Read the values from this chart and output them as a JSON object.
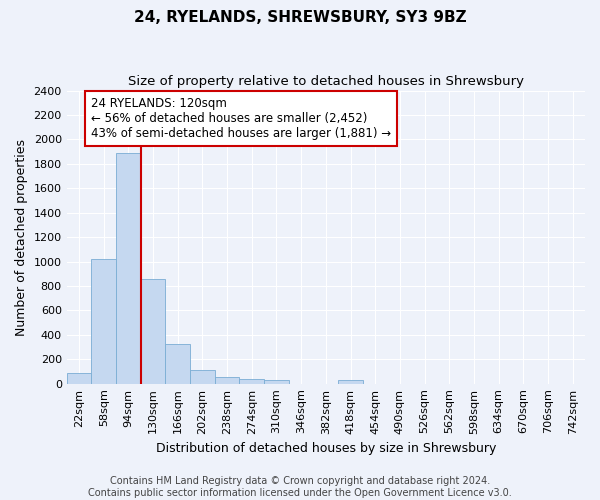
{
  "title": "24, RYELANDS, SHREWSBURY, SY3 9BZ",
  "subtitle": "Size of property relative to detached houses in Shrewsbury",
  "xlabel": "Distribution of detached houses by size in Shrewsbury",
  "ylabel": "Number of detached properties",
  "bar_labels": [
    "22sqm",
    "58sqm",
    "94sqm",
    "130sqm",
    "166sqm",
    "202sqm",
    "238sqm",
    "274sqm",
    "310sqm",
    "346sqm",
    "382sqm",
    "418sqm",
    "454sqm",
    "490sqm",
    "526sqm",
    "562sqm",
    "598sqm",
    "634sqm",
    "670sqm",
    "706sqm",
    "742sqm"
  ],
  "bar_values": [
    85,
    1020,
    1890,
    860,
    325,
    115,
    55,
    40,
    30,
    0,
    0,
    30,
    0,
    0,
    0,
    0,
    0,
    0,
    0,
    0,
    0
  ],
  "bar_color": "#c5d8f0",
  "bar_edge_color": "#7aadd4",
  "ylim": [
    0,
    2400
  ],
  "yticks": [
    0,
    200,
    400,
    600,
    800,
    1000,
    1200,
    1400,
    1600,
    1800,
    2000,
    2200,
    2400
  ],
  "vline_color": "#cc0000",
  "annotation_text": "24 RYELANDS: 120sqm\n← 56% of detached houses are smaller (2,452)\n43% of semi-detached houses are larger (1,881) →",
  "annotation_box_color": "#ffffff",
  "annotation_box_edge": "#cc0000",
  "footer_text": "Contains HM Land Registry data © Crown copyright and database right 2024.\nContains public sector information licensed under the Open Government Licence v3.0.",
  "background_color": "#eef2fa",
  "grid_color": "#ffffff",
  "title_fontsize": 11,
  "subtitle_fontsize": 9.5,
  "tick_fontsize": 8,
  "ylabel_fontsize": 9,
  "xlabel_fontsize": 9,
  "footer_fontsize": 7,
  "annot_fontsize": 8.5
}
